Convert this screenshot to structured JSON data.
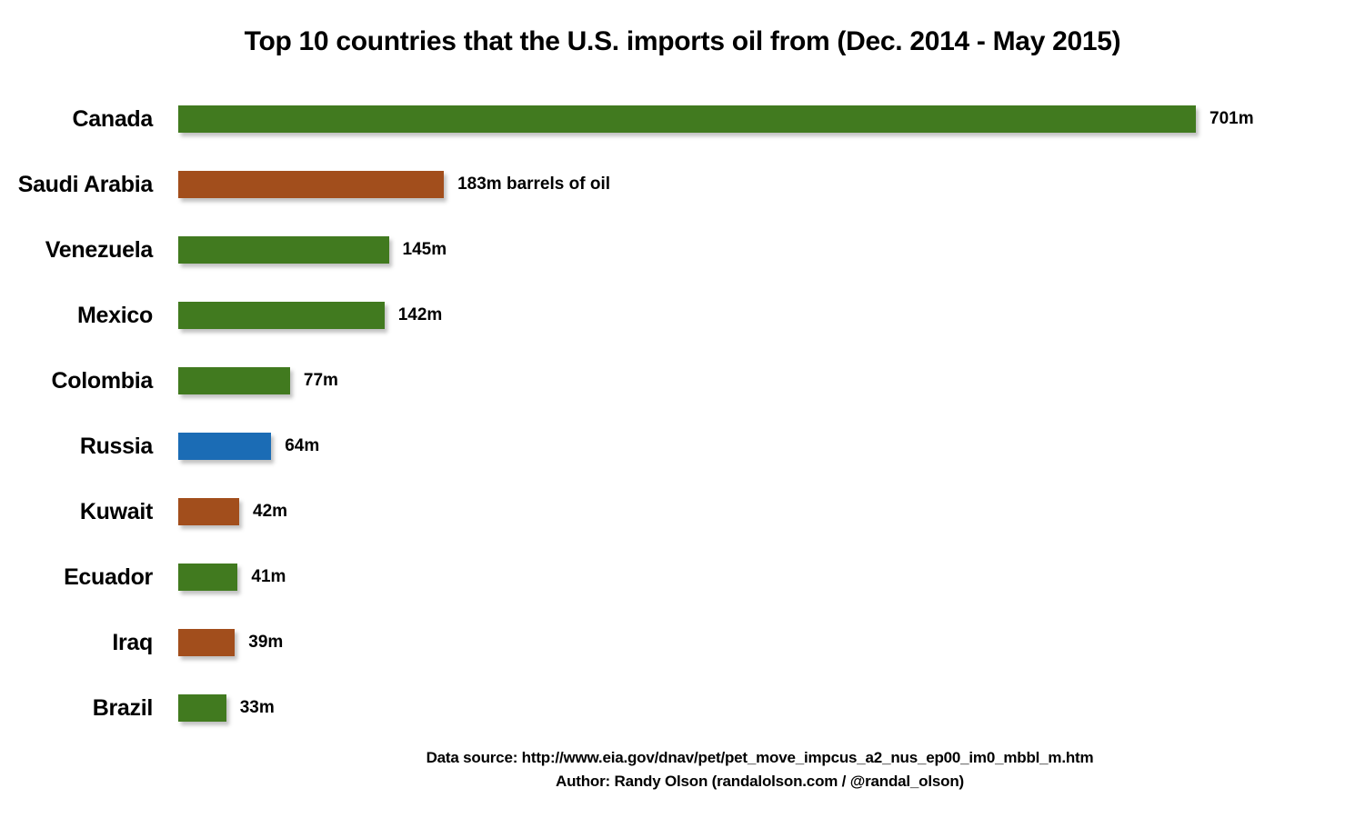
{
  "title": "Top 10 countries that the U.S. imports oil from (Dec. 2014 - May 2015)",
  "footer": {
    "source_line": "Data source: http://www.eia.gov/dnav/pet/pet_move_impcus_a2_nus_ep00_im0_mbbl_m.htm",
    "author_line": "Author: Randy Olson (randalolson.com / @randal_olson)"
  },
  "colors": {
    "green": "#417A1F",
    "brown": "#A24E1C",
    "blue": "#1B6CB5",
    "text": "#000000",
    "background": "#FFFFFF"
  },
  "chart_data": {
    "type": "bar",
    "orientation": "horizontal",
    "title": "Top 10 countries that the U.S. imports oil from (Dec. 2014 - May 2015)",
    "xlabel": "",
    "ylabel": "",
    "unit": "millions of barrels of oil",
    "xlim": [
      0,
      701
    ],
    "grid": false,
    "legend": false,
    "categories": [
      "Canada",
      "Saudi Arabia",
      "Venezuela",
      "Mexico",
      "Colombia",
      "Russia",
      "Kuwait",
      "Ecuador",
      "Iraq",
      "Brazil"
    ],
    "values": [
      701,
      183,
      145,
      142,
      77,
      64,
      42,
      41,
      39,
      33
    ],
    "value_labels": [
      "701m",
      "183m barrels of oil",
      "145m",
      "142m",
      "77m",
      "64m",
      "42m",
      "41m",
      "39m",
      "33m"
    ],
    "bar_colors": [
      "green",
      "brown",
      "green",
      "green",
      "green",
      "blue",
      "brown",
      "green",
      "brown",
      "green"
    ]
  }
}
